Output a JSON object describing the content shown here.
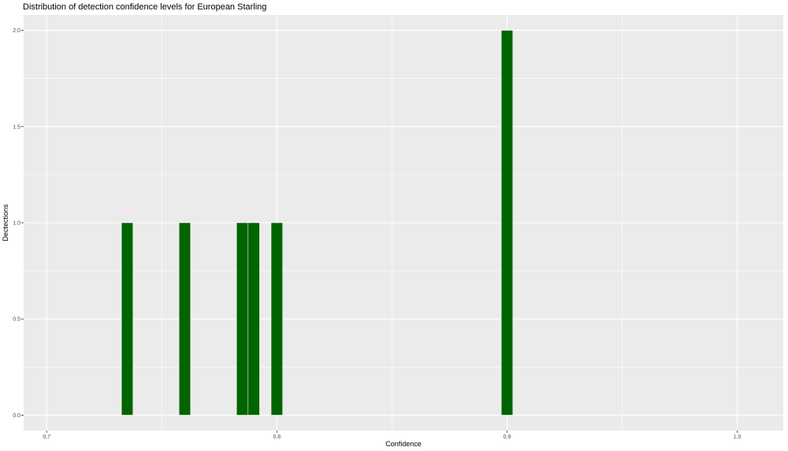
{
  "chart_data": {
    "type": "bar",
    "title": "Distribution of detection confidence levels for European Starling",
    "xlabel": "Confidence",
    "ylabel": "Dectections",
    "xlim": [
      0.69,
      1.02
    ],
    "ylim": [
      -0.08,
      2.08
    ],
    "x_ticks": [
      0.7,
      0.8,
      0.9,
      1.0
    ],
    "x_tick_labels": [
      "0.7",
      "0.8",
      "0.9",
      "1.0"
    ],
    "y_ticks": [
      0.0,
      0.5,
      1.0,
      1.5,
      2.0
    ],
    "y_tick_labels": [
      "0.0",
      "0.5",
      "1.0",
      "1.5",
      "2.0"
    ],
    "bin_width": 0.005,
    "bars": [
      {
        "x": 0.735,
        "value": 1
      },
      {
        "x": 0.76,
        "value": 1
      },
      {
        "x": 0.785,
        "value": 1
      },
      {
        "x": 0.79,
        "value": 1
      },
      {
        "x": 0.8,
        "value": 1
      },
      {
        "x": 0.9,
        "value": 2
      }
    ],
    "bar_color": "#006400",
    "panel_background": "#ebebeb",
    "grid": true,
    "grid_color": "#ffffff",
    "legend": "none"
  }
}
